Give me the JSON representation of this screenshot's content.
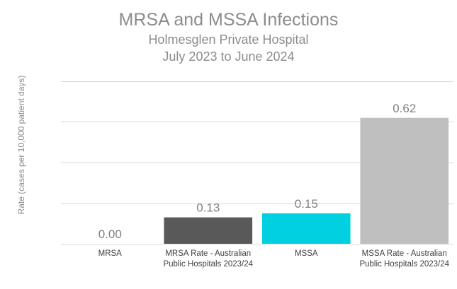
{
  "chart_data": {
    "type": "bar",
    "title": "MRSA and MSSA Infections",
    "subtitle": [
      "Holmesglen Private Hospital",
      "July 2023 to June 2024"
    ],
    "ylabel": "Rate (cases  per 10,000 patient days)",
    "xlabel": "",
    "categories": [
      [
        "MRSA"
      ],
      [
        "MRSA Rate - Australian",
        "Public Hospitals 2023/24"
      ],
      [
        "MSSA"
      ],
      [
        "MSSA Rate - Australian",
        "Public Hospitals 2023/24"
      ]
    ],
    "values": [
      0.0,
      0.13,
      0.15,
      0.62
    ],
    "data_labels": [
      "0.00",
      "0.13",
      "0.15",
      "0.62"
    ],
    "colors": [
      "#595959",
      "#595959",
      "#00d0e0",
      "#bfbfbf"
    ],
    "ylim": [
      0,
      0.8
    ],
    "grid": true,
    "legend": "none"
  }
}
